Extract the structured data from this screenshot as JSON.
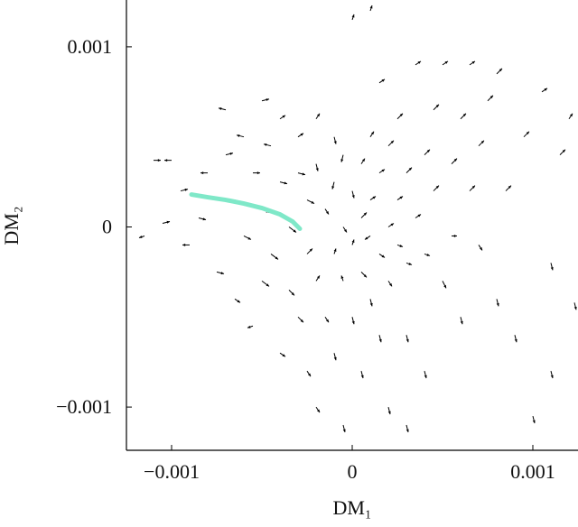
{
  "chart_data": {
    "type": "quiver",
    "xlabel": "DM₁",
    "ylabel": "DM₂",
    "xlim": [
      -0.00125,
      0.00125
    ],
    "ylim": [
      -0.00124,
      0.00126
    ],
    "xticks": [
      {
        "value": -0.001,
        "label": "−0.001"
      },
      0,
      0.001
    ],
    "yticks": [
      {
        "value": -0.001,
        "label": "−0.001"
      },
      0,
      0.001
    ],
    "color": "#000000",
    "x": [
      -0.0011,
      -0.001,
      -0.00115,
      -0.00105,
      -0.00095,
      -0.0009,
      -0.00085,
      -0.0008,
      -0.00075,
      -0.0007,
      -0.0007,
      -0.00065,
      -0.00065,
      -0.0006,
      -0.0006,
      -0.00055,
      -0.00055,
      -0.0005,
      -0.0005,
      -0.0005,
      -0.00045,
      -0.00045,
      -0.0004,
      -0.0004,
      -0.0004,
      -0.00035,
      -0.00035,
      -0.0003,
      -0.0003,
      -0.0003,
      -0.00025,
      -0.00025,
      -0.00025,
      -0.0002,
      -0.0002,
      -0.0002,
      -0.0002,
      -0.00015,
      -0.00015,
      -0.0001,
      -0.0001,
      -0.0001,
      -0.0001,
      -5e-05,
      -5e-05,
      -5e-05,
      -5e-05,
      0,
      0,
      0,
      0,
      5e-05,
      5e-05,
      5e-05,
      5e-05,
      0.0001,
      0.0001,
      0.0001,
      0.0001,
      0.0001,
      0.00015,
      0.00015,
      0.00015,
      0.00015,
      0.0002,
      0.0002,
      0.0002,
      0.0002,
      0.00025,
      0.00025,
      0.00025,
      0.0003,
      0.0003,
      0.0003,
      0.0003,
      0.00035,
      0.00035,
      0.0004,
      0.0004,
      0.0004,
      0.00045,
      0.00045,
      0.0005,
      0.0005,
      0.00055,
      0.00055,
      0.0006,
      0.0006,
      0.00065,
      0.00065,
      0.0007,
      0.0007,
      0.00075,
      0.0008,
      0.0008,
      0.00085,
      0.0009,
      0.00095,
      0.001,
      0.00105,
      0.0011,
      0.0011,
      0.00115,
      0.0012,
      0.00123
    ],
    "y": [
      0.00037,
      0.00037,
      -5e-05,
      2e-05,
      0.0002,
      -0.0001,
      5e-05,
      0.0003,
      -0.00025,
      0.0004,
      0.00065,
      0.00015,
      -0.0004,
      0.0005,
      -5e-05,
      0.0003,
      -0.00055,
      0.0007,
      0.0001,
      -0.0003,
      0.00045,
      -0.00015,
      0.0006,
      0.00025,
      -0.0007,
      0,
      -0.00035,
      0.0005,
      0.0003,
      -0.0005,
      0.00015,
      -0.00015,
      -0.0008,
      0.0006,
      0.00035,
      -0.0003,
      -0.001,
      0.0001,
      -0.0005,
      0.0005,
      0.00025,
      -0.00015,
      -0.0007,
      0,
      0.0004,
      -0.0003,
      -0.0011,
      0.0002,
      -0.0001,
      -0.0005,
      0.00115,
      5e-05,
      0.00035,
      -0.00025,
      -0.0008,
      0.0012,
      0.00015,
      -5e-05,
      0.0005,
      -0.0004,
      0.0003,
      -0.00015,
      0.0008,
      -0.0006,
      0,
      0.00045,
      -0.0003,
      -0.001,
      0.00015,
      -0.0001,
      0.0006,
      0.0003,
      -0.0002,
      -0.0006,
      -0.0011,
      5e-05,
      0.0009,
      0.0004,
      -0.00015,
      -0.0008,
      0.0002,
      0.00065,
      -0.0003,
      0.0009,
      0.00035,
      -5e-05,
      0.0006,
      -0.0005,
      0.0009,
      0.0002,
      0.00045,
      -0.0001,
      0.0007,
      -0.0004,
      0.00085,
      0.0002,
      -0.0006,
      0.0005,
      -0.00105,
      0.00075,
      -0.0002,
      -0.0008,
      0.0004,
      0.0006,
      -0.00042
    ],
    "u": [
      4e-05,
      -4e-05,
      -3e-05,
      4e-05,
      4e-05,
      -4e-05,
      4e-05,
      -4e-05,
      4e-05,
      4e-05,
      -4e-05,
      4e-05,
      3e-05,
      -4e-05,
      4e-05,
      4e-05,
      -3e-05,
      4e-05,
      4e-05,
      4e-05,
      -4e-05,
      4e-05,
      3e-05,
      4e-05,
      3e-05,
      4e-05,
      3e-05,
      3e-05,
      4e-05,
      3e-05,
      4e-05,
      3e-05,
      2e-05,
      2e-05,
      1e-05,
      2e-05,
      2e-05,
      2e-05,
      2e-05,
      1e-05,
      -1e-05,
      1e-05,
      1e-05,
      2e-05,
      -1e-05,
      -1e-05,
      1e-05,
      1e-05,
      1e-05,
      1e-05,
      1e-05,
      3e-05,
      2e-05,
      3e-05,
      1e-05,
      1e-05,
      3e-05,
      -3e-05,
      2e-05,
      1e-05,
      3e-05,
      3e-05,
      3e-05,
      1e-05,
      3e-05,
      3e-05,
      2e-05,
      1e-05,
      3e-05,
      3e-05,
      3e-05,
      3e-05,
      3e-05,
      1e-05,
      1e-05,
      3e-05,
      3e-05,
      3e-05,
      3e-05,
      1e-05,
      3e-05,
      3e-05,
      2e-05,
      3e-05,
      3e-05,
      3e-05,
      3e-05,
      1e-05,
      3e-05,
      3e-05,
      3e-05,
      2e-05,
      3e-05,
      1e-05,
      3e-05,
      3e-05,
      1e-05,
      3e-05,
      1e-05,
      3e-05,
      1e-05,
      1e-05,
      3e-05,
      2e-05,
      1e-05
    ],
    "v": [
      0,
      0,
      -1e-05,
      1e-05,
      1e-05,
      0,
      -1e-05,
      0,
      -1e-05,
      1e-05,
      1e-05,
      -2e-05,
      -2e-05,
      1e-05,
      -2e-05,
      0,
      -1e-05,
      1e-05,
      -2e-05,
      -3e-05,
      1e-05,
      -3e-05,
      2e-05,
      -1e-05,
      -2e-05,
      -3e-05,
      -3e-05,
      2e-05,
      -1e-05,
      -3e-05,
      -2e-05,
      3e-05,
      -3e-05,
      3e-05,
      -4e-05,
      3e-05,
      -3e-05,
      -3e-05,
      -3e-05,
      -4e-05,
      -4e-05,
      3e-05,
      -4e-05,
      -3e-05,
      -4e-05,
      3e-05,
      -4e-05,
      -4e-05,
      3e-05,
      -4e-05,
      3e-05,
      3e-05,
      3e-05,
      -3e-05,
      -4e-05,
      3e-05,
      2e-05,
      -2e-05,
      3e-05,
      -4e-05,
      2e-05,
      -2e-05,
      2e-05,
      -4e-05,
      2e-05,
      3e-05,
      -3e-05,
      -4e-05,
      2e-05,
      -1e-05,
      3e-05,
      3e-05,
      -1e-05,
      -4e-05,
      -4e-05,
      2e-05,
      2e-05,
      3e-05,
      -1e-05,
      -4e-05,
      3e-05,
      3e-05,
      -4e-05,
      2e-05,
      3e-05,
      0,
      3e-05,
      -4e-05,
      2e-05,
      3e-05,
      3e-05,
      -3e-05,
      3e-05,
      -4e-05,
      3e-05,
      3e-05,
      -4e-05,
      3e-05,
      -4e-05,
      2e-05,
      -4e-05,
      -4e-05,
      3e-05,
      3e-05,
      -4e-05
    ],
    "trajectory": {
      "color": "#7fe8c8",
      "x": [
        -0.00089,
        -0.0008,
        -0.0007,
        -0.0006,
        -0.0005,
        -0.0004,
        -0.00033,
        -0.00029
      ],
      "y": [
        0.00018,
        0.000165,
        0.00015,
        0.00013,
        0.000105,
        7e-05,
        3e-05,
        -1e-05
      ]
    }
  }
}
